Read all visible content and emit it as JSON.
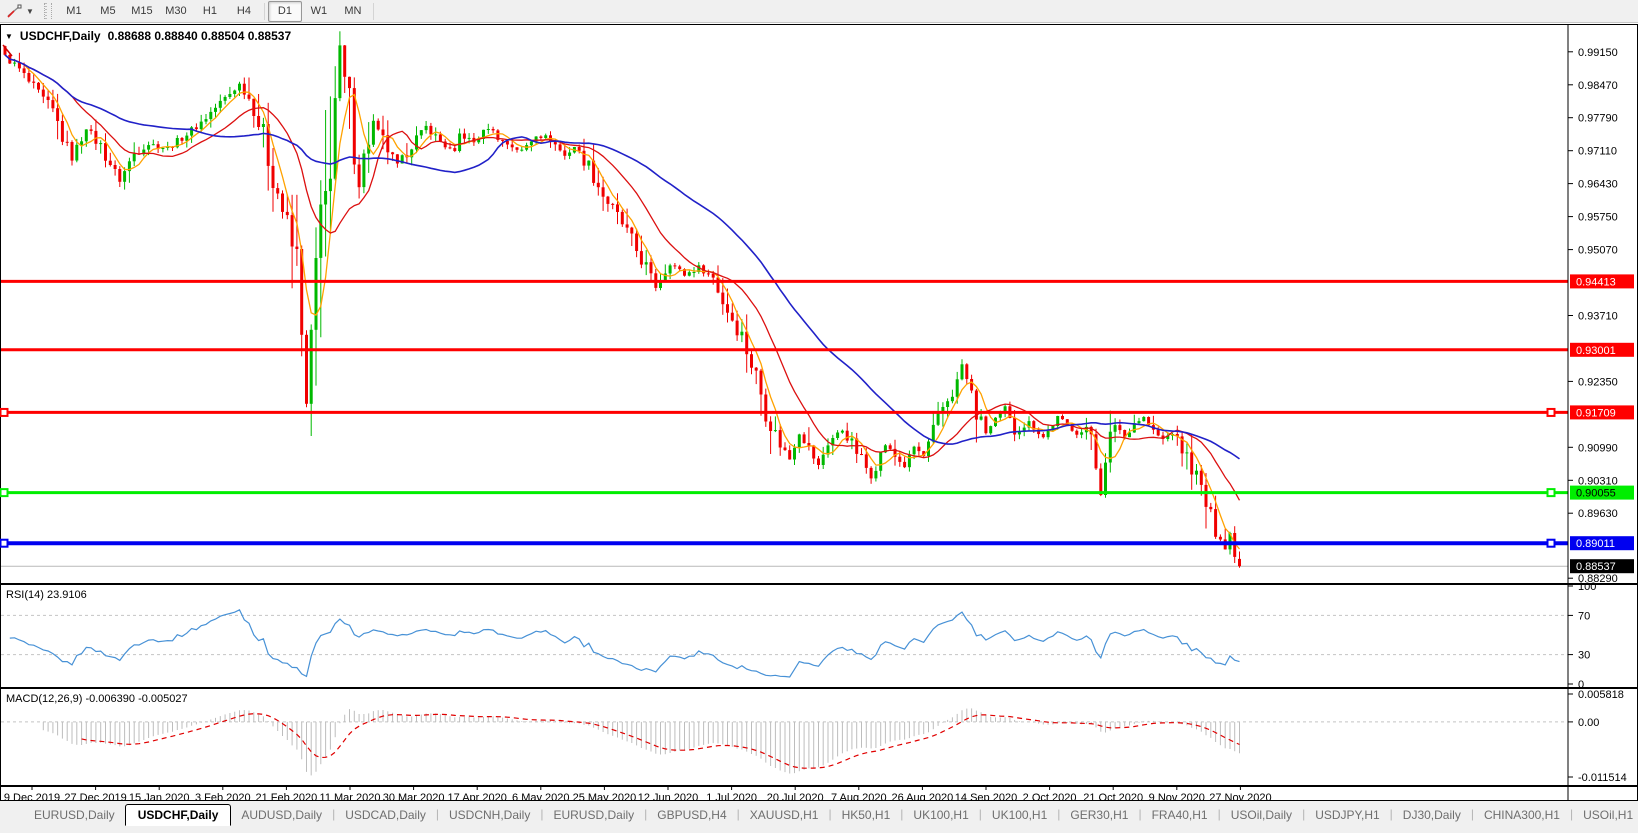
{
  "toolbar": {
    "timeframes": [
      "M1",
      "M5",
      "M15",
      "M30",
      "H1",
      "H4",
      "D1",
      "W1",
      "MN"
    ],
    "active_timeframe": "D1"
  },
  "chart": {
    "symbol_label": "USDCHF,Daily",
    "ohlc_text": "0.88688 0.88840 0.88504 0.88537",
    "price_axis_labels": [
      {
        "text": "0.99150",
        "value": 0.9915
      },
      {
        "text": "0.98470",
        "value": 0.9847
      },
      {
        "text": "0.97790",
        "value": 0.9779
      },
      {
        "text": "0.97110",
        "value": 0.9711
      },
      {
        "text": "0.96430",
        "value": 0.9643
      },
      {
        "text": "0.95750",
        "value": 0.9575
      },
      {
        "text": "0.95070",
        "value": 0.9507
      },
      {
        "text": "0.93710",
        "value": 0.9371
      },
      {
        "text": "0.92350",
        "value": 0.9235
      },
      {
        "text": "0.90990",
        "value": 0.9099
      },
      {
        "text": "0.90310",
        "value": 0.9031
      },
      {
        "text": "0.89630",
        "value": 0.8963
      },
      {
        "text": "0.88290",
        "value": 0.8829
      }
    ]
  },
  "rsi_panel": {
    "label": "RSI(14) 23.9106"
  },
  "macd_panel": {
    "label": "MACD(12,26,9) -0.006390 -0.005027"
  },
  "tabs": {
    "items": [
      {
        "label": "EURUSD,Daily",
        "active": false
      },
      {
        "label": "USDCHF,Daily",
        "active": true
      },
      {
        "label": "AUDUSD,Daily",
        "active": false
      },
      {
        "label": "USDCAD,Daily",
        "active": false
      },
      {
        "label": "USDCNH,Daily",
        "active": false
      },
      {
        "label": "EURUSD,Daily",
        "active": false
      },
      {
        "label": "GBPUSD,H4",
        "active": false
      },
      {
        "label": "XAUUSD,H1",
        "active": false
      },
      {
        "label": "HK50,H1",
        "active": false
      },
      {
        "label": "UK100,H1",
        "active": false
      },
      {
        "label": "UK100,H1",
        "active": false
      },
      {
        "label": "GER30,H1",
        "active": false
      },
      {
        "label": "FRA40,H1",
        "active": false
      },
      {
        "label": "USOil,Daily",
        "active": false
      },
      {
        "label": "USDJPY,H1",
        "active": false
      },
      {
        "label": "DJ30,Daily",
        "active": false
      },
      {
        "label": "CHINA300,H1",
        "active": false
      },
      {
        "label": "USOil,H1",
        "active": false
      }
    ],
    "scroll_left": "◄",
    "scroll_right": "►"
  },
  "chart_data": {
    "type": "candlestick",
    "symbol": "USDCHF",
    "timeframe": "Daily",
    "n_candles": 259,
    "price_range": [
      0.8819,
      0.996
    ],
    "last_ohlc": {
      "open": 0.88688,
      "high": 0.8884,
      "low": 0.88504,
      "close": 0.88537
    },
    "current_price": 0.88537,
    "candle_up_color": "#00B800",
    "candle_down_color": "#F00000",
    "close_keypoints": [
      [
        0,
        0.9905
      ],
      [
        3,
        0.9878
      ],
      [
        5,
        0.9852
      ],
      [
        8,
        0.9815
      ],
      [
        10,
        0.979
      ],
      [
        14,
        0.9695
      ],
      [
        17,
        0.976
      ],
      [
        20,
        0.972
      ],
      [
        24,
        0.965
      ],
      [
        27,
        0.9705
      ],
      [
        30,
        0.9725
      ],
      [
        34,
        0.9716
      ],
      [
        38,
        0.9745
      ],
      [
        41,
        0.977
      ],
      [
        44,
        0.98
      ],
      [
        49,
        0.9848
      ],
      [
        52,
        0.9805
      ],
      [
        55,
        0.97
      ],
      [
        58,
        0.959
      ],
      [
        61,
        0.947
      ],
      [
        62,
        0.936
      ],
      [
        63,
        0.9185
      ],
      [
        64,
        0.933
      ],
      [
        65,
        0.945
      ],
      [
        67,
        0.96
      ],
      [
        68,
        0.972
      ],
      [
        70,
        0.9915
      ],
      [
        72,
        0.979
      ],
      [
        74,
        0.9645
      ],
      [
        75,
        0.97
      ],
      [
        77,
        0.977
      ],
      [
        79,
        0.973
      ],
      [
        82,
        0.968
      ],
      [
        85,
        0.9725
      ],
      [
        88,
        0.976
      ],
      [
        91,
        0.973
      ],
      [
        94,
        0.9705
      ],
      [
        95,
        0.9745
      ],
      [
        98,
        0.9728
      ],
      [
        101,
        0.976
      ],
      [
        104,
        0.973
      ],
      [
        108,
        0.971
      ],
      [
        111,
        0.9745
      ],
      [
        114,
        0.9735
      ],
      [
        117,
        0.97
      ],
      [
        119,
        0.972
      ],
      [
        122,
        0.968
      ],
      [
        125,
        0.962
      ],
      [
        129,
        0.956
      ],
      [
        132,
        0.9505
      ],
      [
        134,
        0.947
      ],
      [
        136,
        0.943
      ],
      [
        139,
        0.948
      ],
      [
        142,
        0.9455
      ],
      [
        145,
        0.947
      ],
      [
        148,
        0.945
      ],
      [
        150,
        0.94
      ],
      [
        154,
        0.933
      ],
      [
        157,
        0.9245
      ],
      [
        159,
        0.918
      ],
      [
        161,
        0.9125
      ],
      [
        164,
        0.9075
      ],
      [
        166,
        0.913
      ],
      [
        168,
        0.9095
      ],
      [
        170,
        0.906
      ],
      [
        172,
        0.911
      ],
      [
        175,
        0.9135
      ],
      [
        178,
        0.909
      ],
      [
        181,
        0.904
      ],
      [
        184,
        0.9105
      ],
      [
        186,
        0.908
      ],
      [
        188,
        0.906
      ],
      [
        190,
        0.91
      ],
      [
        192,
        0.908
      ],
      [
        194,
        0.9125
      ],
      [
        196,
        0.918
      ],
      [
        199,
        0.9235
      ],
      [
        200,
        0.927
      ],
      [
        203,
        0.917
      ],
      [
        205,
        0.913
      ],
      [
        207,
        0.9155
      ],
      [
        209,
        0.918
      ],
      [
        211,
        0.913
      ],
      [
        214,
        0.915
      ],
      [
        217,
        0.912
      ],
      [
        220,
        0.916
      ],
      [
        224,
        0.913
      ],
      [
        227,
        0.913
      ],
      [
        229,
        0.9005
      ],
      [
        231,
        0.911
      ],
      [
        232,
        0.915
      ],
      [
        234,
        0.912
      ],
      [
        236,
        0.915
      ],
      [
        238,
        0.916
      ],
      [
        240,
        0.913
      ],
      [
        242,
        0.9115
      ],
      [
        244,
        0.913
      ],
      [
        246,
        0.9095
      ],
      [
        248,
        0.906
      ],
      [
        250,
        0.901
      ],
      [
        252,
        0.895
      ],
      [
        254,
        0.8915
      ],
      [
        255,
        0.889
      ],
      [
        256,
        0.892
      ],
      [
        257,
        0.888
      ],
      [
        258,
        0.88537
      ]
    ],
    "moving_averages": [
      {
        "period": 5,
        "color": "#FFA200"
      },
      {
        "period": 15,
        "color": "#DC1010"
      },
      {
        "period": 40,
        "color": "#2121C8"
      }
    ],
    "levels": [
      {
        "text": "0.94413",
        "value": 0.94413,
        "color": "#FF0000",
        "label_text": "#FFFFFF",
        "width": 3,
        "anchors": false
      },
      {
        "text": "0.93001",
        "value": 0.93001,
        "color": "#FF0000",
        "label_text": "#FFFFFF",
        "width": 3,
        "anchors": false
      },
      {
        "text": "0.91709",
        "value": 0.91709,
        "color": "#FF0000",
        "label_text": "#FFFFFF",
        "width": 3,
        "anchors": true
      },
      {
        "text": "0.90055",
        "value": 0.90055,
        "color": "#00EE00",
        "label_text": "#000000",
        "width": 3,
        "anchors": true
      },
      {
        "text": "0.89011",
        "value": 0.89011,
        "color": "#0000F0",
        "label_text": "#FFFFFF",
        "width": 4,
        "anchors": true
      }
    ],
    "rsi": {
      "period": 14,
      "value": 23.9106,
      "color": "#4791D6",
      "axis_labels": [
        "100",
        "70",
        "30",
        "0"
      ],
      "guide_levels": [
        70,
        30
      ]
    },
    "macd": {
      "fast": 12,
      "slow": 26,
      "signal": 9,
      "macd_value": -0.00639,
      "signal_value": -0.005027,
      "axis_labels": [
        "0.005818",
        "0.00",
        "-0.011514"
      ],
      "axis_range": [
        0.005818,
        -0.011514
      ],
      "hist_color": "#BDBDBD",
      "signal_color": "#E00000"
    },
    "date_labels": [
      "9 Dec 2019",
      "27 Dec 2019",
      "15 Jan 2020",
      "3 Feb 2020",
      "21 Feb 2020",
      "11 Mar 2020",
      "30 Mar 2020",
      "17 Apr 2020",
      "6 May 2020",
      "25 May 2020",
      "12 Jun 2020",
      "1 Jul 2020",
      "20 Jul 2020",
      "7 Aug 2020",
      "26 Aug 2020",
      "14 Sep 2020",
      "2 Oct 2020",
      "21 Oct 2020",
      "9 Nov 2020",
      "27 Nov 2020"
    ]
  }
}
